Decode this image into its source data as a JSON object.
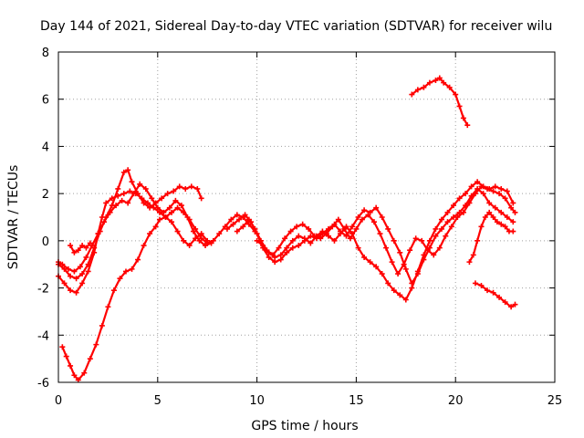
{
  "chart_data": {
    "type": "scatter",
    "title": "Day 144 of 2021, Sidereal Day-to-day VTEC variation (SDTVAR) for receiver wilu",
    "xlabel": "GPS time / hours",
    "ylabel": "SDTVAR / TECUs",
    "xlim": [
      0,
      25
    ],
    "ylim": [
      -6,
      8
    ],
    "xticks": [
      0,
      5,
      10,
      15,
      20,
      25
    ],
    "yticks": [
      -6,
      -4,
      -2,
      0,
      2,
      4,
      6,
      8
    ],
    "grid": true,
    "legend": "none",
    "marker": "plus",
    "color": "#ff0000",
    "series": [
      {
        "name": "trace-1",
        "points": [
          [
            0.0,
            -1.5
          ],
          [
            0.3,
            -1.8
          ],
          [
            0.6,
            -2.1
          ],
          [
            0.9,
            -2.2
          ],
          [
            1.2,
            -1.8
          ],
          [
            1.5,
            -1.3
          ],
          [
            1.8,
            -0.5
          ],
          [
            2.0,
            0.3
          ],
          [
            2.2,
            1.0
          ],
          [
            2.4,
            1.6
          ],
          [
            2.7,
            1.8
          ],
          [
            3.0,
            1.9
          ],
          [
            3.3,
            2.0
          ],
          [
            3.6,
            2.1
          ],
          [
            3.9,
            2.0
          ],
          [
            4.2,
            1.8
          ],
          [
            4.5,
            1.6
          ],
          [
            4.8,
            1.4
          ],
          [
            5.1,
            1.2
          ],
          [
            5.4,
            1.0
          ],
          [
            5.7,
            1.2
          ],
          [
            6.0,
            1.4
          ],
          [
            6.3,
            1.2
          ],
          [
            6.6,
            0.9
          ],
          [
            6.9,
            0.5
          ],
          [
            7.2,
            0.1
          ],
          [
            7.5,
            -0.1
          ],
          [
            7.8,
            0.0
          ],
          [
            8.1,
            0.3
          ],
          [
            8.4,
            0.6
          ],
          [
            8.7,
            0.9
          ],
          [
            9.0,
            1.1
          ],
          [
            9.3,
            1.0
          ],
          [
            9.6,
            0.7
          ],
          [
            9.9,
            0.4
          ]
        ]
      },
      {
        "name": "trace-2",
        "points": [
          [
            0.0,
            -1.0
          ],
          [
            0.3,
            -1.2
          ],
          [
            0.6,
            -1.5
          ],
          [
            0.9,
            -1.6
          ],
          [
            1.2,
            -1.4
          ],
          [
            1.5,
            -1.0
          ],
          [
            1.8,
            -0.3
          ],
          [
            2.1,
            0.4
          ],
          [
            2.4,
            1.0
          ],
          [
            2.7,
            1.5
          ],
          [
            3.0,
            2.2
          ],
          [
            3.3,
            2.9
          ],
          [
            3.5,
            3.0
          ],
          [
            3.7,
            2.5
          ],
          [
            4.0,
            2.0
          ],
          [
            4.3,
            1.6
          ],
          [
            4.6,
            1.4
          ],
          [
            4.9,
            1.6
          ],
          [
            5.2,
            1.8
          ],
          [
            5.5,
            2.0
          ],
          [
            5.8,
            2.1
          ],
          [
            6.1,
            2.3
          ],
          [
            6.4,
            2.2
          ],
          [
            6.7,
            2.3
          ],
          [
            7.0,
            2.2
          ],
          [
            7.2,
            1.8
          ]
        ]
      },
      {
        "name": "trace-3",
        "points": [
          [
            0.0,
            -0.9
          ],
          [
            0.2,
            -1.0
          ],
          [
            0.5,
            -1.2
          ],
          [
            0.8,
            -1.3
          ],
          [
            1.1,
            -1.1
          ],
          [
            1.4,
            -0.7
          ],
          [
            1.7,
            -0.2
          ],
          [
            2.0,
            0.3
          ],
          [
            2.3,
            0.8
          ],
          [
            2.6,
            1.2
          ],
          [
            2.9,
            1.5
          ],
          [
            3.2,
            1.7
          ],
          [
            3.5,
            1.6
          ],
          [
            3.8,
            2.0
          ],
          [
            4.1,
            2.4
          ],
          [
            4.4,
            2.2
          ],
          [
            4.7,
            1.8
          ],
          [
            5.0,
            1.4
          ],
          [
            5.3,
            1.2
          ],
          [
            5.6,
            1.4
          ],
          [
            5.9,
            1.7
          ],
          [
            6.2,
            1.5
          ],
          [
            6.5,
            1.0
          ],
          [
            6.8,
            0.4
          ],
          [
            7.1,
            0.0
          ],
          [
            7.4,
            -0.2
          ],
          [
            7.7,
            -0.1
          ]
        ]
      },
      {
        "name": "trace-4",
        "points": [
          [
            0.6,
            -0.2
          ],
          [
            0.8,
            -0.5
          ],
          [
            1.0,
            -0.4
          ],
          [
            1.2,
            -0.2
          ],
          [
            1.4,
            -0.3
          ],
          [
            1.6,
            -0.1
          ]
        ]
      },
      {
        "name": "trace-5",
        "points": [
          [
            0.2,
            -4.5
          ],
          [
            0.4,
            -4.9
          ],
          [
            0.6,
            -5.3
          ],
          [
            0.8,
            -5.7
          ],
          [
            1.0,
            -5.9
          ],
          [
            1.3,
            -5.6
          ],
          [
            1.6,
            -5.0
          ],
          [
            1.9,
            -4.4
          ],
          [
            2.2,
            -3.6
          ],
          [
            2.5,
            -2.8
          ],
          [
            2.8,
            -2.1
          ],
          [
            3.1,
            -1.6
          ],
          [
            3.4,
            -1.3
          ],
          [
            3.7,
            -1.2
          ],
          [
            4.0,
            -0.8
          ],
          [
            4.3,
            -0.2
          ],
          [
            4.6,
            0.3
          ],
          [
            4.9,
            0.6
          ],
          [
            5.1,
            0.9
          ],
          [
            5.4,
            1.0
          ],
          [
            5.7,
            0.8
          ],
          [
            6.0,
            0.4
          ],
          [
            6.3,
            0.0
          ],
          [
            6.6,
            -0.2
          ],
          [
            6.9,
            0.1
          ],
          [
            7.2,
            0.3
          ],
          [
            7.5,
            0.0
          ]
        ]
      },
      {
        "name": "trace-6",
        "points": [
          [
            8.5,
            0.5
          ],
          [
            8.8,
            0.7
          ],
          [
            9.1,
            0.9
          ],
          [
            9.4,
            1.1
          ],
          [
            9.7,
            0.8
          ],
          [
            10.0,
            0.3
          ],
          [
            10.3,
            -0.3
          ],
          [
            10.6,
            -0.7
          ],
          [
            10.9,
            -0.9
          ],
          [
            11.2,
            -0.8
          ],
          [
            11.5,
            -0.5
          ],
          [
            11.8,
            -0.3
          ],
          [
            12.1,
            -0.2
          ],
          [
            12.4,
            0.0
          ],
          [
            12.7,
            0.2
          ],
          [
            13.0,
            0.1
          ],
          [
            13.3,
            0.3
          ],
          [
            13.6,
            0.5
          ],
          [
            13.9,
            0.7
          ],
          [
            14.2,
            0.4
          ],
          [
            14.5,
            0.2
          ],
          [
            14.8,
            0.6
          ],
          [
            15.1,
            1.0
          ],
          [
            15.4,
            1.3
          ],
          [
            15.7,
            1.2
          ],
          [
            16.0,
            1.4
          ],
          [
            16.3,
            1.0
          ],
          [
            16.6,
            0.5
          ],
          [
            16.9,
            0.0
          ],
          [
            17.2,
            -0.5
          ],
          [
            17.5,
            -1.2
          ],
          [
            17.8,
            -1.8
          ],
          [
            18.1,
            -1.4
          ],
          [
            18.4,
            -0.8
          ],
          [
            18.7,
            -0.3
          ],
          [
            19.0,
            0.2
          ],
          [
            19.3,
            0.5
          ],
          [
            19.6,
            0.8
          ],
          [
            19.9,
            1.0
          ],
          [
            20.2,
            1.2
          ],
          [
            20.5,
            1.5
          ],
          [
            20.8,
            1.9
          ],
          [
            21.1,
            2.2
          ],
          [
            21.4,
            2.0
          ],
          [
            21.7,
            1.6
          ],
          [
            22.0,
            1.4
          ],
          [
            22.3,
            1.2
          ],
          [
            22.6,
            1.0
          ],
          [
            22.9,
            0.8
          ]
        ]
      },
      {
        "name": "trace-7",
        "points": [
          [
            9.0,
            0.4
          ],
          [
            9.3,
            0.6
          ],
          [
            9.6,
            0.9
          ],
          [
            9.9,
            0.5
          ],
          [
            10.2,
            0.0
          ],
          [
            10.5,
            -0.4
          ],
          [
            10.8,
            -0.6
          ],
          [
            11.1,
            -0.3
          ],
          [
            11.4,
            0.1
          ],
          [
            11.7,
            0.4
          ],
          [
            12.0,
            0.6
          ],
          [
            12.3,
            0.7
          ],
          [
            12.6,
            0.5
          ],
          [
            12.9,
            0.2
          ],
          [
            13.2,
            0.1
          ],
          [
            13.5,
            0.3
          ],
          [
            13.8,
            0.6
          ],
          [
            14.1,
            0.9
          ],
          [
            14.4,
            0.5
          ],
          [
            14.7,
            0.1
          ],
          [
            15.0,
            0.5
          ],
          [
            15.3,
            0.9
          ],
          [
            15.6,
            1.1
          ],
          [
            15.9,
            0.8
          ],
          [
            16.2,
            0.3
          ],
          [
            16.5,
            -0.3
          ],
          [
            16.8,
            -0.9
          ],
          [
            17.1,
            -1.4
          ],
          [
            17.4,
            -1.0
          ],
          [
            17.7,
            -0.4
          ],
          [
            18.0,
            0.1
          ],
          [
            18.3,
            0.0
          ],
          [
            18.6,
            -0.4
          ],
          [
            18.9,
            -0.6
          ],
          [
            19.2,
            -0.3
          ],
          [
            19.5,
            0.2
          ],
          [
            19.8,
            0.6
          ],
          [
            20.1,
            1.0
          ],
          [
            20.4,
            1.2
          ],
          [
            20.7,
            1.6
          ],
          [
            21.0,
            2.0
          ],
          [
            21.3,
            2.3
          ],
          [
            21.6,
            2.2
          ],
          [
            21.9,
            2.1
          ],
          [
            22.2,
            2.0
          ],
          [
            22.5,
            1.8
          ],
          [
            22.8,
            1.4
          ],
          [
            23.0,
            1.2
          ]
        ]
      },
      {
        "name": "trace-8",
        "points": [
          [
            10.0,
            0.0
          ],
          [
            10.3,
            -0.2
          ],
          [
            10.6,
            -0.5
          ],
          [
            10.9,
            -0.7
          ],
          [
            11.2,
            -0.6
          ],
          [
            11.5,
            -0.3
          ],
          [
            11.8,
            0.0
          ],
          [
            12.1,
            0.2
          ],
          [
            12.4,
            0.1
          ],
          [
            12.7,
            -0.1
          ],
          [
            13.0,
            0.2
          ],
          [
            13.3,
            0.4
          ],
          [
            13.6,
            0.2
          ],
          [
            13.9,
            0.0
          ],
          [
            14.2,
            0.3
          ],
          [
            14.5,
            0.6
          ],
          [
            14.8,
            0.3
          ],
          [
            15.1,
            -0.3
          ],
          [
            15.4,
            -0.7
          ],
          [
            15.7,
            -0.9
          ],
          [
            16.0,
            -1.1
          ],
          [
            16.3,
            -1.4
          ],
          [
            16.6,
            -1.8
          ],
          [
            16.9,
            -2.1
          ],
          [
            17.2,
            -2.3
          ],
          [
            17.5,
            -2.5
          ],
          [
            17.8,
            -2.0
          ],
          [
            18.1,
            -1.3
          ],
          [
            18.4,
            -0.6
          ],
          [
            18.7,
            0.0
          ],
          [
            19.0,
            0.5
          ],
          [
            19.3,
            0.9
          ],
          [
            19.6,
            1.2
          ],
          [
            19.9,
            1.5
          ],
          [
            20.2,
            1.8
          ],
          [
            20.5,
            2.0
          ],
          [
            20.8,
            2.3
          ],
          [
            21.1,
            2.5
          ],
          [
            21.4,
            2.3
          ],
          [
            21.7,
            2.2
          ],
          [
            22.0,
            2.3
          ],
          [
            22.3,
            2.2
          ],
          [
            22.6,
            2.1
          ],
          [
            22.9,
            1.6
          ]
        ]
      },
      {
        "name": "trace-9",
        "points": [
          [
            17.8,
            6.2
          ],
          [
            18.1,
            6.4
          ],
          [
            18.4,
            6.5
          ],
          [
            18.7,
            6.7
          ],
          [
            19.0,
            6.8
          ],
          [
            19.2,
            6.9
          ],
          [
            19.4,
            6.7
          ],
          [
            19.7,
            6.5
          ],
          [
            20.0,
            6.2
          ],
          [
            20.2,
            5.7
          ],
          [
            20.4,
            5.2
          ],
          [
            20.6,
            4.9
          ]
        ]
      },
      {
        "name": "trace-10",
        "points": [
          [
            20.7,
            -0.9
          ],
          [
            20.9,
            -0.6
          ],
          [
            21.1,
            0.0
          ],
          [
            21.3,
            0.6
          ],
          [
            21.5,
            1.0
          ],
          [
            21.7,
            1.2
          ],
          [
            21.9,
            1.0
          ],
          [
            22.1,
            0.8
          ],
          [
            22.3,
            0.7
          ],
          [
            22.5,
            0.6
          ],
          [
            22.7,
            0.4
          ],
          [
            22.9,
            0.4
          ]
        ]
      },
      {
        "name": "trace-11",
        "points": [
          [
            21.0,
            -1.8
          ],
          [
            21.3,
            -1.9
          ],
          [
            21.6,
            -2.1
          ],
          [
            21.9,
            -2.2
          ],
          [
            22.2,
            -2.4
          ],
          [
            22.5,
            -2.6
          ],
          [
            22.8,
            -2.8
          ],
          [
            23.0,
            -2.7
          ]
        ]
      }
    ]
  }
}
